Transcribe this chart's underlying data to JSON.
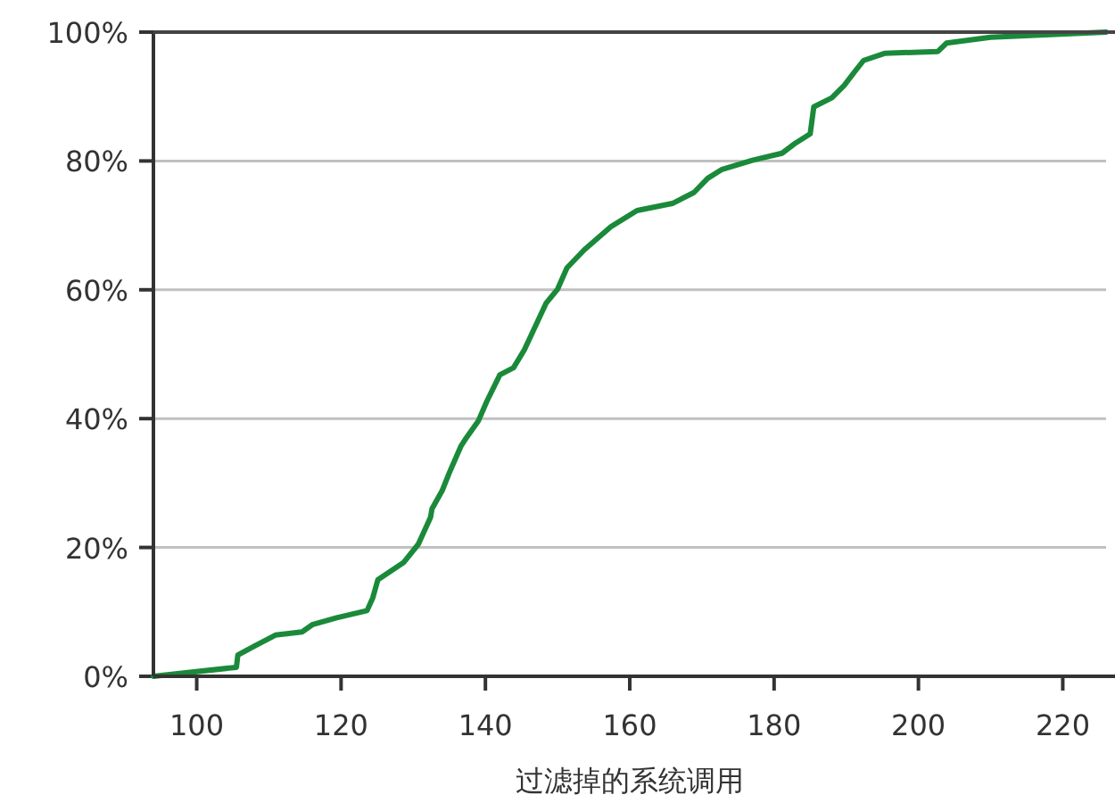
{
  "chart_data": {
    "type": "line",
    "xlabel": "过滤掉的系统调用",
    "x": [
      94,
      105.5,
      105.7,
      108,
      110.9,
      114.6,
      116,
      119.4,
      123.6,
      124.4,
      125.1,
      128.7,
      130.7,
      132.4,
      132.6,
      134,
      135,
      136.6,
      137.4,
      139,
      140.2,
      142,
      143.9,
      145.4,
      146.9,
      148.4,
      150,
      151.3,
      153.7,
      157.4,
      161,
      165.9,
      168.9,
      170.8,
      172.8,
      177,
      181.1,
      183,
      185,
      185.5,
      188,
      189.7,
      191.2,
      192.4,
      195.3,
      202.7,
      203.9,
      210,
      226
    ],
    "series": [
      {
        "color": "#1a8a3a",
        "values": [
          0,
          1.4,
          3.3,
          4.7,
          6.4,
          6.9,
          8,
          9.1,
          10.2,
          12.2,
          15,
          17.7,
          20.5,
          24.7,
          26,
          28.8,
          31.6,
          35.7,
          37.1,
          39.6,
          42.7,
          46.8,
          47.9,
          50.7,
          54.3,
          57.9,
          60.1,
          63.4,
          66.2,
          69.8,
          72.3,
          73.4,
          75.1,
          77.3,
          78.7,
          80.1,
          81.2,
          82.8,
          84.2,
          88.4,
          89.8,
          91.7,
          93.9,
          95.6,
          96.7,
          97,
          98.3,
          99.2,
          100
        ]
      }
    ],
    "xlim": [
      94,
      226
    ],
    "ylim": [
      0,
      100
    ],
    "xticks": [
      100,
      120,
      140,
      160,
      180,
      200,
      220
    ],
    "yticks": [
      {
        "value": 0,
        "label": "0%"
      },
      {
        "value": 20,
        "label": "20%"
      },
      {
        "value": 40,
        "label": "40%"
      },
      {
        "value": 60,
        "label": "60%"
      },
      {
        "value": 80,
        "label": "80%"
      },
      {
        "value": 100,
        "label": "100%"
      }
    ],
    "grid": "y",
    "marker": "none",
    "line_style": "solid"
  }
}
